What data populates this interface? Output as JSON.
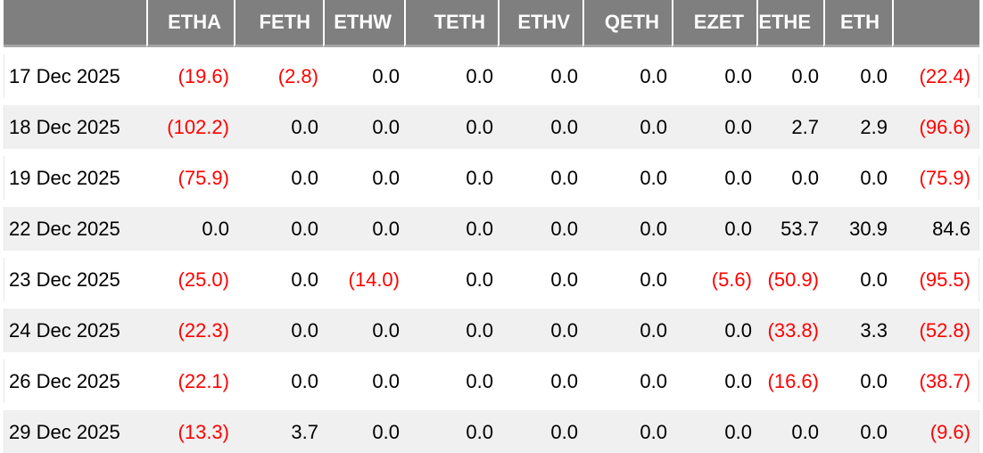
{
  "colors": {
    "header_bg": "#7f7f7f",
    "header_text": "#ffffff",
    "header_divider": "#a6a6a6",
    "row_stripe": "#f0f0f0",
    "negative_value": "#ff0000",
    "positive_value": "#000000"
  },
  "chart_data": {
    "type": "table",
    "title": "",
    "columns": [
      "",
      "ETHA",
      "FETH",
      "ETHW",
      "TETH",
      "ETHV",
      "QETH",
      "EZET",
      "ETHE",
      "ETH",
      ""
    ],
    "rows": [
      {
        "date": "17 Dec 2025",
        "cells": [
          "(19.6)",
          "(2.8)",
          "0.0",
          "0.0",
          "0.0",
          "0.0",
          "0.0",
          "0.0",
          "0.0",
          "(22.4)"
        ]
      },
      {
        "date": "18 Dec 2025",
        "cells": [
          "(102.2)",
          "0.0",
          "0.0",
          "0.0",
          "0.0",
          "0.0",
          "0.0",
          "2.7",
          "2.9",
          "(96.6)"
        ]
      },
      {
        "date": "19 Dec 2025",
        "cells": [
          "(75.9)",
          "0.0",
          "0.0",
          "0.0",
          "0.0",
          "0.0",
          "0.0",
          "0.0",
          "0.0",
          "(75.9)"
        ]
      },
      {
        "date": "22 Dec 2025",
        "cells": [
          "0.0",
          "0.0",
          "0.0",
          "0.0",
          "0.0",
          "0.0",
          "0.0",
          "53.7",
          "30.9",
          "84.6"
        ]
      },
      {
        "date": "23 Dec 2025",
        "cells": [
          "(25.0)",
          "0.0",
          "(14.0)",
          "0.0",
          "0.0",
          "0.0",
          "(5.6)",
          "(50.9)",
          "0.0",
          "(95.5)"
        ]
      },
      {
        "date": "24 Dec 2025",
        "cells": [
          "(22.3)",
          "0.0",
          "0.0",
          "0.0",
          "0.0",
          "0.0",
          "0.0",
          "(33.8)",
          "3.3",
          "(52.8)"
        ]
      },
      {
        "date": "26 Dec 2025",
        "cells": [
          "(22.1)",
          "0.0",
          "0.0",
          "0.0",
          "0.0",
          "0.0",
          "0.0",
          "(16.6)",
          "0.0",
          "(38.7)"
        ]
      },
      {
        "date": "29 Dec 2025",
        "cells": [
          "(13.3)",
          "3.7",
          "0.0",
          "0.0",
          "0.0",
          "0.0",
          "0.0",
          "0.0",
          "0.0",
          "(9.6)"
        ]
      }
    ]
  }
}
